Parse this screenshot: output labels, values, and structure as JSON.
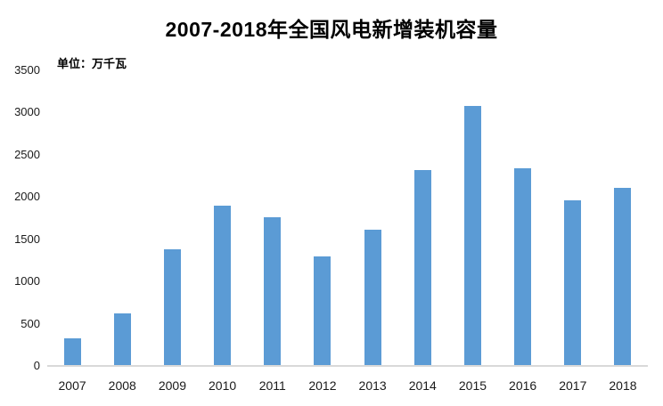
{
  "chart": {
    "title": "2007-2018年全国风电新增装机容量",
    "unit_label": "单位：万千瓦",
    "bar_color": "#5B9BD5",
    "axis_line_color": "#D9D9D9",
    "text_color": "#1a1a1a"
  },
  "chart_data": {
    "type": "bar",
    "title": "2007-2018年全国风电新增装机容量",
    "categories": [
      "2007",
      "2008",
      "2009",
      "2010",
      "2011",
      "2012",
      "2013",
      "2014",
      "2015",
      "2016",
      "2017",
      "2018"
    ],
    "values": [
      330,
      619,
      1380,
      1893,
      1763,
      1296,
      1610,
      2320,
      3075,
      2337,
      1966,
      2110
    ],
    "xlabel": "",
    "ylabel": "单位：万千瓦",
    "unit": "万千瓦",
    "ylim": [
      0,
      3500
    ],
    "yticks": [
      0,
      500,
      1000,
      1500,
      2000,
      2500,
      3000,
      3500
    ],
    "grid": false,
    "legend": false,
    "bar_color": "#5B9BD5"
  }
}
